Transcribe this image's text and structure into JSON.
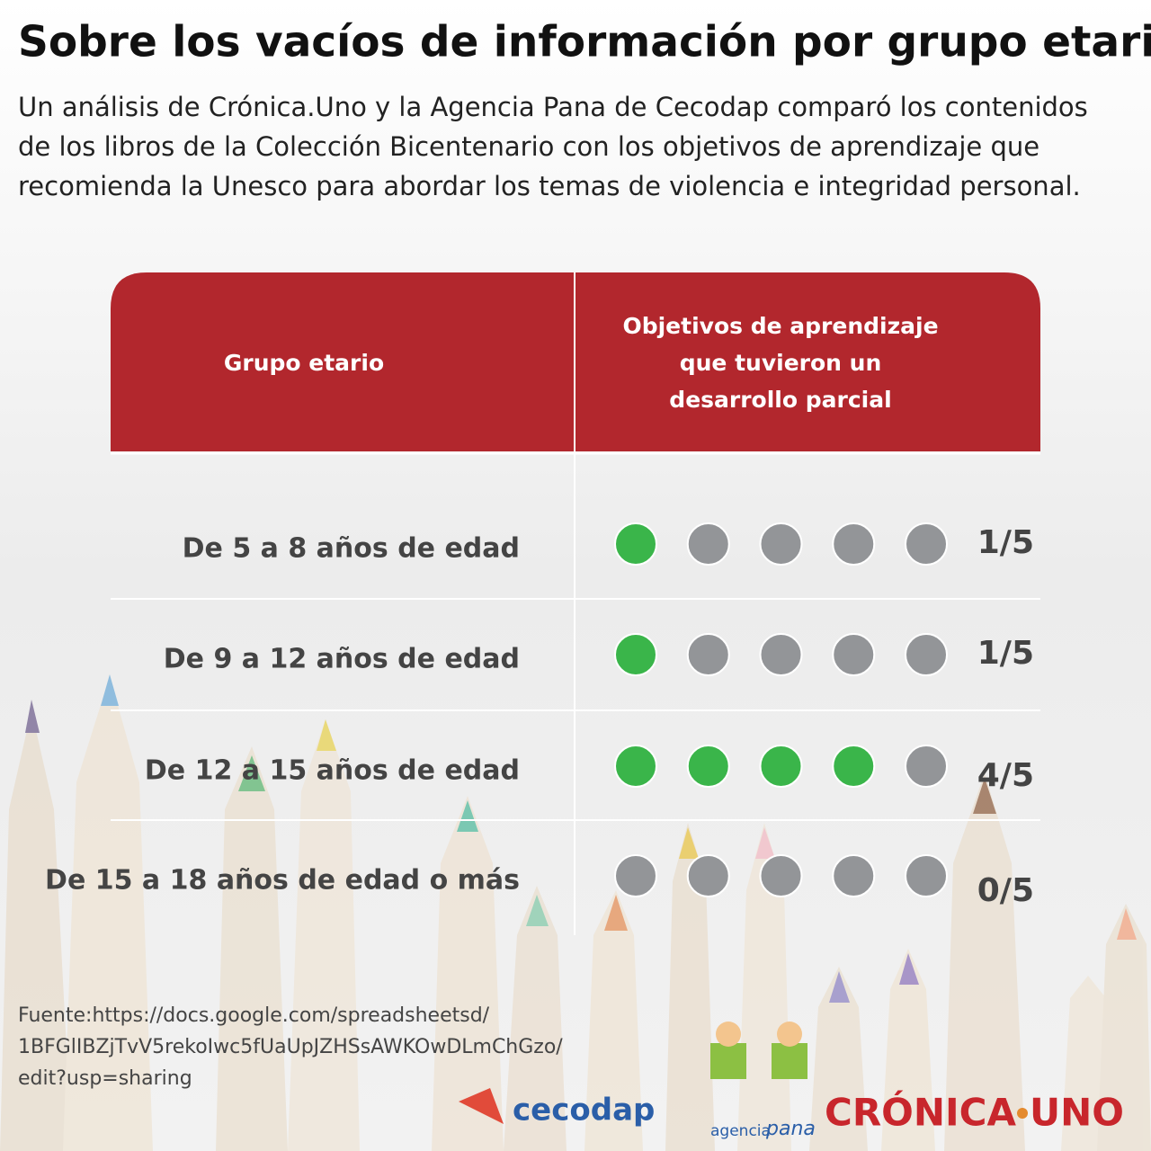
{
  "header": {
    "title": "Sobre los vacíos de información por grupo etario",
    "subtitle_lines": [
      "Un análisis de Crónica.Uno y la Agencia Pana de Cecodap comparó los contenidos",
      "de los libros de la Colección Bicentenario con los objetivos de aprendizaje que",
      "recomienda la Unesco para abordar los temas de violencia e integridad personal."
    ]
  },
  "table": {
    "columns": {
      "group": "Grupo etario",
      "objective_lines": [
        "Objetivos de aprendizaje",
        "que tuvieron un",
        "desarrollo parcial"
      ]
    },
    "rows": [
      {
        "group": "De 5 a 8 años de edad",
        "achieved": 1,
        "total": 5,
        "score": "1/5"
      },
      {
        "group": "De 9 a 12 años de edad",
        "achieved": 1,
        "total": 5,
        "score": "1/5"
      },
      {
        "group": "De 12 a 15 años de edad",
        "achieved": 4,
        "total": 5,
        "score": "4/5"
      },
      {
        "group": "De 15 a 18 años de edad o más",
        "achieved": 0,
        "total": 5,
        "score": "0/5"
      }
    ]
  },
  "source_lines": [
    "Fuente:https://docs.google.com/spreadsheetsd/",
    "1BFGlIBZjTvV5rekoIwc5fUaUpJZHSsAWKOwDLmChGzo/",
    "edit?usp=sharing"
  ],
  "logos": {
    "cecodap": "cecodap",
    "agencia": "agencia",
    "pana": "pana",
    "cronica": "CRÓNICA",
    "uno": "UNO"
  }
}
